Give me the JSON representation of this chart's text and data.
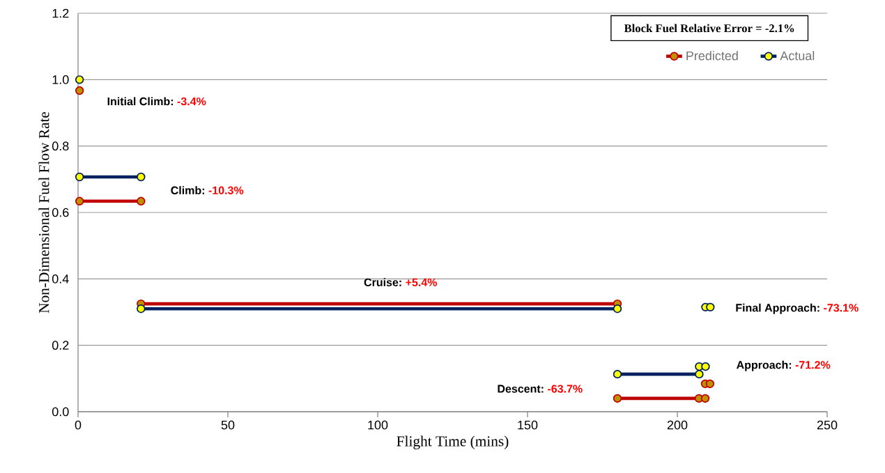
{
  "chart_data": {
    "type": "line",
    "xlabel": "Flight Time (mins)",
    "ylabel": "Non-Dimensional Fuel Flow Rate",
    "x": [
      0.5,
      null,
      0.5,
      21,
      null,
      21,
      180,
      null,
      180,
      207.2,
      209.3,
      null,
      209.3,
      210.9,
      null,
      null,
      null
    ],
    "series": [
      {
        "name": "Predicted",
        "color": "#c00000",
        "values": [
          0.967,
          null,
          0.634,
          0.634,
          null,
          0.325,
          0.325,
          null,
          0.04,
          0.04,
          0.04,
          null,
          0.084,
          0.084,
          null,
          null,
          null
        ]
      },
      {
        "name": "Actual",
        "color": "#002060",
        "x": [
          0.5,
          null,
          0.5,
          21,
          null,
          21,
          180,
          null,
          180,
          207.3,
          null,
          207.3,
          209.4,
          null,
          209.4,
          211
        ],
        "values": [
          1.0,
          null,
          0.707,
          0.707,
          null,
          0.31,
          0.31,
          null,
          0.113,
          0.113,
          null,
          0.136,
          0.136,
          null,
          0.315,
          0.315
        ]
      }
    ],
    "xlim": [
      0,
      250
    ],
    "ylim": [
      0,
      1.2
    ],
    "xticks": [
      0,
      50,
      100,
      150,
      200,
      250
    ],
    "yticks": [
      {
        "value": 0,
        "label": "0.0"
      },
      {
        "value": 0.2,
        "label": "0.2"
      },
      {
        "value": 0.4,
        "label": "0.4"
      },
      {
        "value": 0.6,
        "label": "0.6"
      },
      {
        "value": 0.8,
        "label": "0.8"
      },
      {
        "value": 1.0,
        "label": "1.0"
      },
      {
        "value": 1.2,
        "label": "1.2"
      }
    ],
    "grid": "y",
    "legend": "top right",
    "marker": "circle",
    "line_style": "solid",
    "annotations": [
      "Block Fuel Relative Error = -2.1%",
      "Initial Climb:",
      "-3.4%",
      "Climb:",
      "-10.3%",
      "Cruise:",
      "+5.4%",
      "Final Approach:",
      "-73.1%",
      "Approach:",
      "-71.2%",
      "Descent:",
      "-63.7%"
    ]
  }
}
